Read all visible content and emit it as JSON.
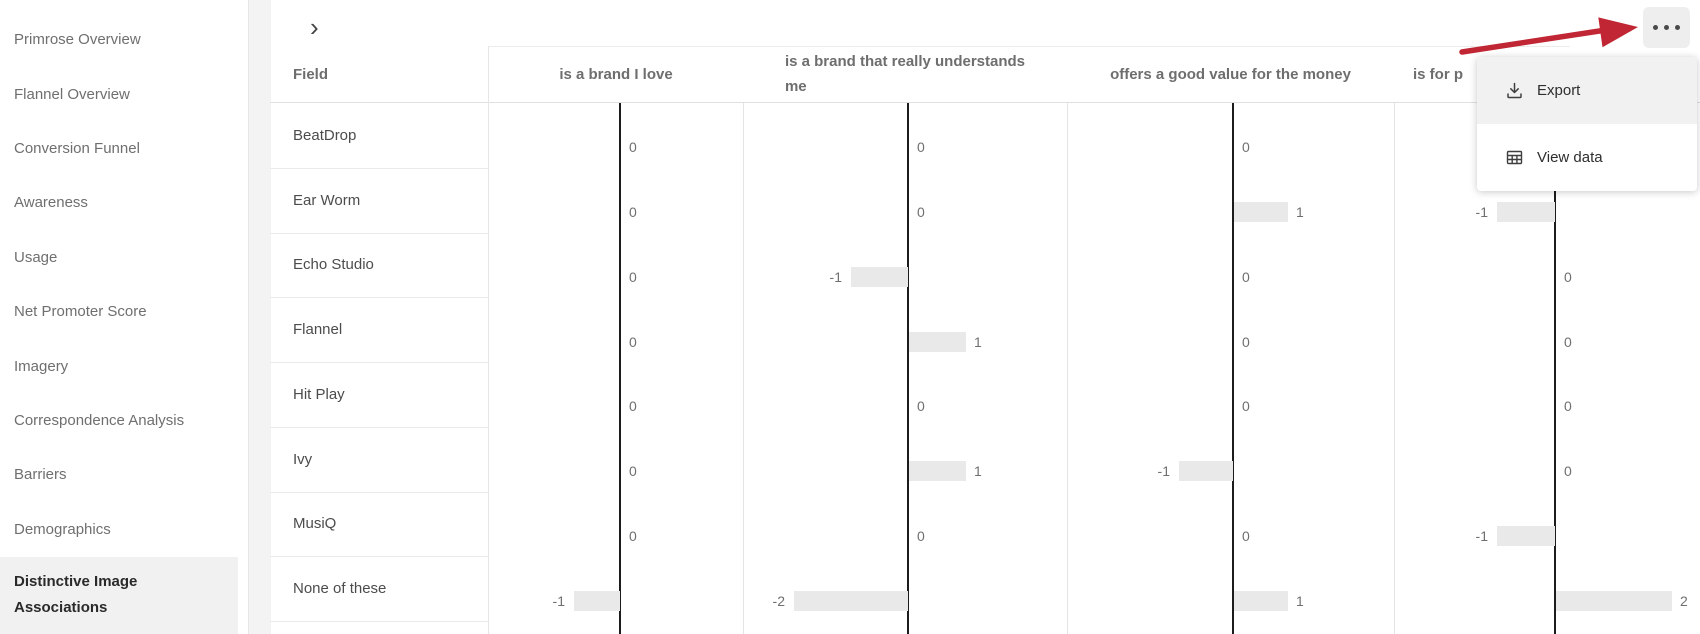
{
  "sidebar": {
    "items": [
      {
        "label": "Primrose Overview",
        "selected": false
      },
      {
        "label": "Flannel Overview",
        "selected": false
      },
      {
        "label": "Conversion Funnel",
        "selected": false
      },
      {
        "label": "Awareness",
        "selected": false
      },
      {
        "label": "Usage",
        "selected": false
      },
      {
        "label": "Net Promoter Score",
        "selected": false
      },
      {
        "label": "Imagery",
        "selected": false
      },
      {
        "label": "Correspondence Analysis",
        "selected": false
      },
      {
        "label": "Barriers",
        "selected": false
      },
      {
        "label": "Demographics",
        "selected": false
      },
      {
        "label": "Distinctive Image\nAssociations",
        "selected": true
      }
    ]
  },
  "panel": {
    "chevron_icon": "›"
  },
  "table": {
    "field_header": "Field",
    "columns": [
      "is a brand I love",
      "is a brand that really understands\nme",
      "offers a good value for the money",
      "is for p"
    ],
    "rows": [
      {
        "field": "BeatDrop",
        "values": [
          0,
          0,
          0,
          null
        ]
      },
      {
        "field": "Ear Worm",
        "values": [
          0,
          0,
          1,
          -1
        ]
      },
      {
        "field": "Echo Studio",
        "values": [
          0,
          -1,
          0,
          0
        ]
      },
      {
        "field": "Flannel",
        "values": [
          0,
          1,
          0,
          0
        ]
      },
      {
        "field": "Hit Play",
        "values": [
          0,
          0,
          0,
          0
        ]
      },
      {
        "field": "Ivy",
        "values": [
          0,
          1,
          -1,
          0
        ]
      },
      {
        "field": "MusiQ",
        "values": [
          0,
          0,
          0,
          -1
        ]
      },
      {
        "field": "None of these",
        "values": [
          -1,
          -2,
          1,
          2
        ]
      }
    ]
  },
  "chart_data": {
    "type": "bar",
    "orientation": "horizontal",
    "categories": [
      "BeatDrop",
      "Ear Worm",
      "Echo Studio",
      "Flannel",
      "Hit Play",
      "Ivy",
      "MusiQ",
      "None of these"
    ],
    "series": [
      {
        "name": "is a brand I love",
        "values": [
          0,
          0,
          0,
          0,
          0,
          0,
          0,
          -1
        ]
      },
      {
        "name": "is a brand that really understands me",
        "values": [
          0,
          0,
          -1,
          1,
          0,
          1,
          0,
          -2
        ]
      },
      {
        "name": "offers a good value for the money",
        "values": [
          0,
          1,
          0,
          0,
          0,
          -1,
          0,
          1
        ]
      },
      {
        "name": "is for p",
        "values": [
          null,
          -1,
          0,
          0,
          0,
          0,
          -1,
          2
        ]
      }
    ],
    "value_range": [
      -2,
      2
    ],
    "bar_color": "#e9e9e9",
    "axis_color": "#1c1c1c"
  },
  "menu": {
    "items": [
      {
        "label": "Export",
        "icon": "download-icon",
        "active": true
      },
      {
        "label": "View data",
        "icon": "table-icon",
        "active": false
      }
    ]
  },
  "annotation": {
    "arrow_color": "#c02633"
  },
  "colors": {
    "selected_nav_bg": "#f1f1f1",
    "bar": "#e9e9e9",
    "axis": "#1c1c1c",
    "menu_button_bg": "#eeeeee",
    "dropdown_hover_bg": "#f1f1f1"
  }
}
